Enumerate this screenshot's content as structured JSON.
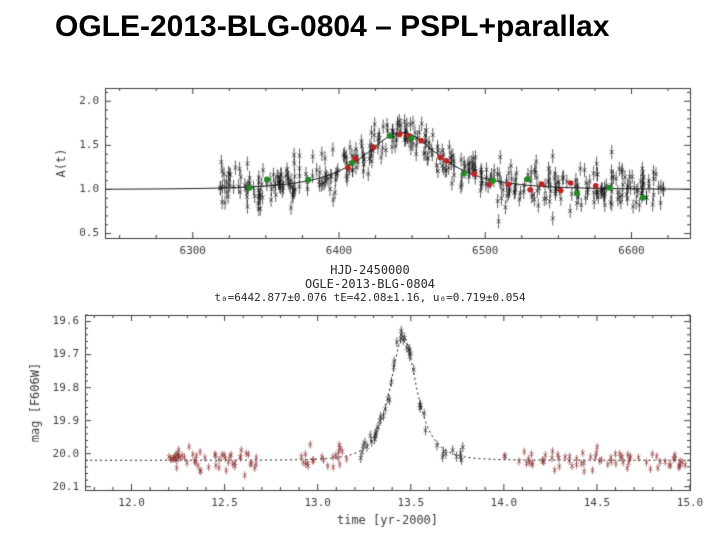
{
  "slide": {
    "title": "OGLE-2013-BLG-0804 – PSPL+parallax",
    "background": "#ffffff"
  },
  "chart_data": [
    {
      "type": "scatter",
      "name": "ogle-magnification-light-curve",
      "ylabel": "A(t)",
      "xlim": [
        6240,
        6640
      ],
      "ylim": [
        0.45,
        2.15
      ],
      "xticks": [
        6300,
        6400,
        6500,
        6600
      ],
      "yticks": [
        0.5,
        1.0,
        1.5,
        2.0
      ],
      "x_minor_step": 25,
      "y_minor_step": 0.1,
      "x_fmt": "int",
      "axis_color": "#3d3d3d",
      "grid": false,
      "annotation_lines": [
        "HJD-2450000",
        "OGLE-2013-BLG-0804",
        "t₀=6442.877±0.076  tE=42.08±1.16, u₀=0.719±0.054"
      ],
      "model": {
        "t0": 6442.877,
        "tE_days": 42.08,
        "u0": 0.719,
        "baseline_A": 1.0,
        "peak_A": 1.65,
        "line_color": "#151515"
      },
      "series": [
        {
          "name": "ogle-I-band-points",
          "marker": "cross",
          "color": "#141414",
          "n": 430,
          "t_min": 6318,
          "t_max": 6622,
          "sigma": 0.12,
          "err": 0.08,
          "seed": 11
        },
        {
          "name": "highlighted-red-points",
          "marker": "dot",
          "color": "#c42020",
          "radius": 2.8,
          "n": 16,
          "t_min": 6398,
          "t_max": 6572,
          "sigma": 0.035,
          "seed": 23,
          "spacing": "even",
          "jitter": 4
        },
        {
          "name": "highlighted-green-points",
          "marker": "dot",
          "color": "#1e8c1e",
          "radius": 3,
          "n": 12,
          "t_min": 6333,
          "t_max": 6612,
          "sigma": 0.04,
          "seed": 37,
          "spacing": "even",
          "jitter": 5
        }
      ]
    },
    {
      "type": "scatter",
      "name": "hst-f606w-light-curve",
      "xlabel": "time [yr-2000]",
      "ylabel": "mag [F606W]",
      "xlim": [
        11.75,
        15.0
      ],
      "ylim": [
        20.11,
        19.58
      ],
      "xticks": [
        12.0,
        12.5,
        13.0,
        13.5,
        14.0,
        14.5,
        15.0
      ],
      "yticks": [
        19.6,
        19.7,
        19.8,
        19.9,
        20.0,
        20.1
      ],
      "x_minor_step": 0.1,
      "y_minor_step": 0.02,
      "x_fmt": "fixed1",
      "axis_color": "#3d3d3d",
      "grid": false,
      "model": {
        "t0": 13.46,
        "tE_years": 0.115,
        "u0": 0.719,
        "baseline_mag": 20.02,
        "peak_mag": 19.645,
        "line_color": "#151515",
        "line_style": "dotted"
      },
      "clusters": [
        {
          "name": "baseline-2012",
          "marker": "cross",
          "color": "#8b3434",
          "n": 55,
          "t_min": 12.18,
          "t_max": 12.68,
          "sigma": 0.016,
          "err": 0.012,
          "seed": 51
        },
        {
          "name": "pre-peak-2013",
          "marker": "cross",
          "color": "#8b3434",
          "n": 22,
          "t_min": 12.9,
          "t_max": 13.18,
          "sigma": 0.015,
          "err": 0.012,
          "seed": 52
        },
        {
          "name": "peak-2013",
          "marker": "cross",
          "color": "#262626",
          "n": 48,
          "t_min": 13.2,
          "t_max": 13.8,
          "sigma": 0.013,
          "err": 0.015,
          "seed": 53
        },
        {
          "name": "baseline-2014",
          "marker": "cross",
          "color": "#8b3434",
          "n": 70,
          "t_min": 14.0,
          "t_max": 15.0,
          "sigma": 0.016,
          "err": 0.012,
          "seed": 54
        }
      ]
    }
  ]
}
